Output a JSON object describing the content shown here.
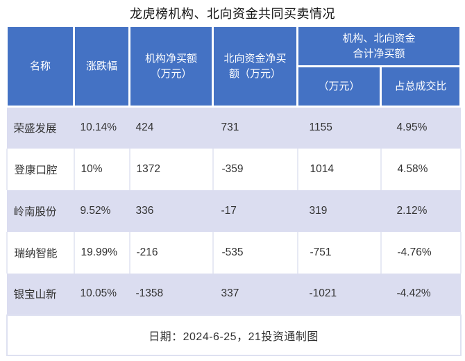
{
  "title": "龙虎榜机构、北向资金共同买卖情况",
  "colors": {
    "header_bg": "#4472C4",
    "header_text": "#FFFFFF",
    "alt_row_bg": "#DBDDF0",
    "plain_row_bg": "#FFFFFF",
    "divider": "#E7E9F4",
    "body_text": "#333333"
  },
  "table": {
    "headers": {
      "name": "名称",
      "change": "涨跌幅",
      "inst_net": "机构净买额\n（万元）",
      "north_net": "北向资金净买\n额（万元）",
      "combined_group": "机构、北向资金\n合计净买额",
      "combined_amount": "（万元）",
      "combined_ratio": "占总成交比"
    },
    "rows": [
      {
        "name": "荣盛发展",
        "change": "10.14%",
        "inst": "424",
        "north": "731",
        "total": "1155",
        "ratio": "4.95%"
      },
      {
        "name": "登康口腔",
        "change": "10%",
        "inst": "1372",
        "north": "-359",
        "total": "1014",
        "ratio": "4.58%"
      },
      {
        "name": "岭南股份",
        "change": "9.52%",
        "inst": "336",
        "north": "-17",
        "total": "319",
        "ratio": "2.12%"
      },
      {
        "name": "瑞纳智能",
        "change": "19.99%",
        "inst": "-216",
        "north": "-535",
        "total": "-751",
        "ratio": "-4.76%"
      },
      {
        "name": "银宝山新",
        "change": "10.05%",
        "inst": "-1358",
        "north": "337",
        "total": "-1021",
        "ratio": "-4.42%"
      }
    ],
    "footer": "日期：2024-6-25，21投资通制图"
  },
  "chart_data": {
    "type": "table",
    "title": "龙虎榜机构、北向资金共同买卖情况",
    "columns": [
      "名称",
      "涨跌幅",
      "机构净买额（万元）",
      "北向资金净买额（万元）",
      "机构、北向资金合计净买额（万元）",
      "机构、北向资金合计净买额占总成交比"
    ],
    "rows": [
      [
        "荣盛发展",
        "10.14%",
        424,
        731,
        1155,
        "4.95%"
      ],
      [
        "登康口腔",
        "10%",
        1372,
        -359,
        1014,
        "4.58%"
      ],
      [
        "岭南股份",
        "9.52%",
        336,
        -17,
        319,
        "2.12%"
      ],
      [
        "瑞纳智能",
        "19.99%",
        -216,
        -535,
        -751,
        "-4.76%"
      ],
      [
        "银宝山新",
        "10.05%",
        -1358,
        337,
        -1021,
        "-4.42%"
      ]
    ],
    "note": "日期：2024-6-25，21投资通制图",
    "layout": {
      "alternating_rows": true,
      "merged_header_last_two_columns": true
    }
  }
}
